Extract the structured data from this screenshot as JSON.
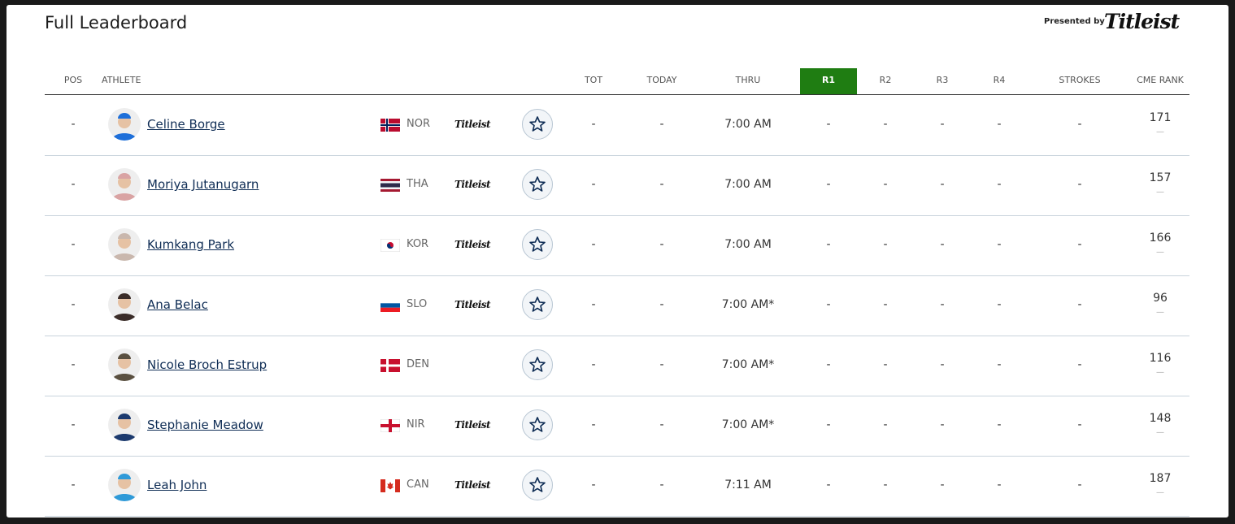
{
  "header": {
    "title": "Full Leaderboard",
    "presented_by": "Presented by",
    "brand": "Titleist"
  },
  "table": {
    "columns": [
      "POS",
      "ATHLETE",
      "TOT",
      "TODAY",
      "THRU",
      "R1",
      "R2",
      "R3",
      "R4",
      "STROKES",
      "CME RANK"
    ],
    "rows": [
      {
        "pos": "-",
        "name": "Celine Borge",
        "country": "NOR",
        "sponsor": "Titleist",
        "tot": "-",
        "today": "-",
        "thru": "7:00 AM",
        "r1": "-",
        "r2": "-",
        "r3": "-",
        "r4": "-",
        "strokes": "-",
        "cme_rank": 171,
        "movement": "—"
      },
      {
        "pos": "-",
        "name": "Moriya Jutanugarn",
        "country": "THA",
        "sponsor": "Titleist",
        "tot": "-",
        "today": "-",
        "thru": "7:00 AM",
        "r1": "-",
        "r2": "-",
        "r3": "-",
        "r4": "-",
        "strokes": "-",
        "cme_rank": 157,
        "movement": "—"
      },
      {
        "pos": "-",
        "name": "Kumkang Park",
        "country": "KOR",
        "sponsor": "Titleist",
        "tot": "-",
        "today": "-",
        "thru": "7:00 AM",
        "r1": "-",
        "r2": "-",
        "r3": "-",
        "r4": "-",
        "strokes": "-",
        "cme_rank": 166,
        "movement": "—"
      },
      {
        "pos": "-",
        "name": "Ana Belac",
        "country": "SLO",
        "sponsor": "Titleist",
        "tot": "-",
        "today": "-",
        "thru": "7:00 AM*",
        "r1": "-",
        "r2": "-",
        "r3": "-",
        "r4": "-",
        "strokes": "-",
        "cme_rank": 96,
        "movement": "—"
      },
      {
        "pos": "-",
        "name": "Nicole Broch Estrup",
        "country": "DEN",
        "tot": "-",
        "today": "-",
        "thru": "7:00 AM*",
        "r1": "-",
        "r2": "-",
        "r3": "-",
        "r4": "-",
        "strokes": "-",
        "cme_rank": 116,
        "movement": "—"
      },
      {
        "pos": "-",
        "name": "Stephanie Meadow",
        "country": "NIR",
        "sponsor": "Titleist",
        "tot": "-",
        "today": "-",
        "thru": "7:00 AM*",
        "r1": "-",
        "r2": "-",
        "r3": "-",
        "r4": "-",
        "strokes": "-",
        "cme_rank": 148,
        "movement": "—"
      },
      {
        "pos": "-",
        "name": "Leah John",
        "country": "CAN",
        "sponsor": "Titleist",
        "tot": "-",
        "today": "-",
        "thru": "7:11 AM",
        "r1": "-",
        "r2": "-",
        "r3": "-",
        "r4": "-",
        "strokes": "-",
        "cme_rank": 187,
        "movement": "—"
      }
    ]
  }
}
